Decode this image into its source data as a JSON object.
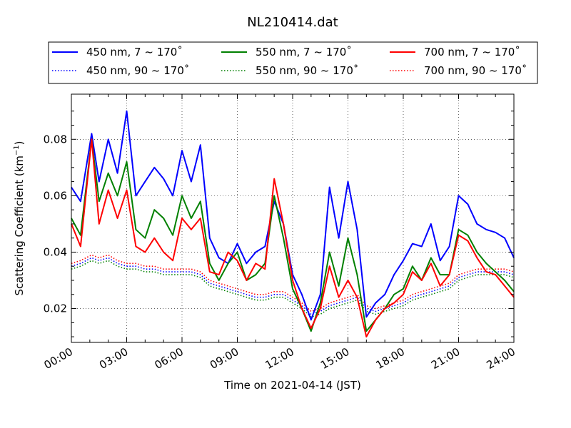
{
  "chart_data": {
    "type": "line",
    "title": "NL210414.dat",
    "xlabel": "Time on 2021-04-14 (JST)",
    "ylabel": "Scattering Coefficient (km",
    "ylabel_sup": "−1",
    "ylabel_close": ")",
    "x_unit": "hours",
    "xlim": [
      0,
      24
    ],
    "ylim": [
      0.008,
      0.096
    ],
    "xticks": [
      {
        "value": 0,
        "label": "00:00"
      },
      {
        "value": 3,
        "label": "03:00"
      },
      {
        "value": 6,
        "label": "06:00"
      },
      {
        "value": 9,
        "label": "09:00"
      },
      {
        "value": 12,
        "label": "12:00"
      },
      {
        "value": 15,
        "label": "15:00"
      },
      {
        "value": 18,
        "label": "18:00"
      },
      {
        "value": 21,
        "label": "21:00"
      },
      {
        "value": 24,
        "label": "24:00"
      }
    ],
    "yticks": [
      {
        "value": 0.02,
        "label": "0.02"
      },
      {
        "value": 0.04,
        "label": "0.04"
      },
      {
        "value": 0.06,
        "label": "0.06"
      },
      {
        "value": 0.08,
        "label": "0.08"
      }
    ],
    "grid": true,
    "legend_position": "top, above plot, 3 columns",
    "x": [
      0,
      0.5,
      1.1,
      1.5,
      2,
      2.5,
      3,
      3.5,
      4,
      4.5,
      5,
      5.5,
      6,
      6.5,
      7,
      7.5,
      8,
      8.5,
      9,
      9.5,
      10,
      10.5,
      11,
      11.5,
      12,
      12.5,
      13,
      13.5,
      14,
      14.5,
      15,
      15.5,
      16,
      16.5,
      17,
      17.5,
      18,
      18.5,
      19,
      19.5,
      20,
      20.5,
      21,
      21.5,
      22,
      22.5,
      23,
      23.5,
      24
    ],
    "series": [
      {
        "name": "450 nm, 7 ~ 170˚",
        "color": "#0000ff",
        "style": "solid",
        "values": [
          0.063,
          0.058,
          0.082,
          0.065,
          0.08,
          0.068,
          0.09,
          0.06,
          0.065,
          0.07,
          0.066,
          0.06,
          0.076,
          0.065,
          0.078,
          0.045,
          0.038,
          0.036,
          0.043,
          0.036,
          0.04,
          0.042,
          0.058,
          0.05,
          0.032,
          0.025,
          0.016,
          0.025,
          0.063,
          0.045,
          0.065,
          0.048,
          0.017,
          0.022,
          0.025,
          0.032,
          0.037,
          0.043,
          0.042,
          0.05,
          0.037,
          0.042,
          0.06,
          0.057,
          0.05,
          0.048,
          0.047,
          0.045,
          0.038
        ]
      },
      {
        "name": "550 nm, 7 ~ 170˚",
        "color": "#008000",
        "style": "solid",
        "values": [
          0.052,
          0.046,
          0.08,
          0.058,
          0.068,
          0.06,
          0.072,
          0.048,
          0.045,
          0.055,
          0.052,
          0.046,
          0.06,
          0.052,
          0.058,
          0.036,
          0.03,
          0.036,
          0.04,
          0.03,
          0.032,
          0.036,
          0.06,
          0.045,
          0.027,
          0.02,
          0.012,
          0.022,
          0.04,
          0.028,
          0.045,
          0.032,
          0.012,
          0.016,
          0.02,
          0.025,
          0.027,
          0.035,
          0.03,
          0.038,
          0.032,
          0.032,
          0.048,
          0.046,
          0.04,
          0.036,
          0.033,
          0.03,
          0.026
        ]
      },
      {
        "name": "700 nm, 7 ~ 170˚",
        "color": "#ff0000",
        "style": "solid",
        "values": [
          0.05,
          0.042,
          0.08,
          0.05,
          0.062,
          0.052,
          0.062,
          0.042,
          0.04,
          0.045,
          0.04,
          0.037,
          0.052,
          0.048,
          0.052,
          0.033,
          0.032,
          0.04,
          0.037,
          0.03,
          0.036,
          0.034,
          0.066,
          0.05,
          0.03,
          0.02,
          0.013,
          0.02,
          0.035,
          0.024,
          0.03,
          0.024,
          0.01,
          0.016,
          0.02,
          0.022,
          0.025,
          0.033,
          0.03,
          0.036,
          0.028,
          0.032,
          0.046,
          0.044,
          0.038,
          0.033,
          0.032,
          0.028,
          0.024
        ]
      },
      {
        "name": "450 nm, 90 ~ 170˚",
        "color": "#0000ff",
        "style": "dotted",
        "values": [
          0.035,
          0.036,
          0.038,
          0.037,
          0.038,
          0.036,
          0.035,
          0.035,
          0.034,
          0.034,
          0.033,
          0.033,
          0.033,
          0.033,
          0.032,
          0.029,
          0.028,
          0.027,
          0.026,
          0.025,
          0.024,
          0.024,
          0.025,
          0.025,
          0.023,
          0.021,
          0.018,
          0.019,
          0.021,
          0.022,
          0.023,
          0.024,
          0.02,
          0.019,
          0.02,
          0.021,
          0.022,
          0.024,
          0.025,
          0.026,
          0.027,
          0.028,
          0.031,
          0.032,
          0.033,
          0.033,
          0.033,
          0.033,
          0.032
        ]
      },
      {
        "name": "550 nm, 90 ~ 170˚",
        "color": "#008000",
        "style": "dotted",
        "values": [
          0.034,
          0.035,
          0.037,
          0.036,
          0.037,
          0.035,
          0.034,
          0.034,
          0.033,
          0.033,
          0.032,
          0.032,
          0.032,
          0.032,
          0.031,
          0.028,
          0.027,
          0.026,
          0.025,
          0.024,
          0.023,
          0.023,
          0.024,
          0.024,
          0.022,
          0.02,
          0.017,
          0.018,
          0.02,
          0.021,
          0.022,
          0.023,
          0.019,
          0.018,
          0.019,
          0.02,
          0.021,
          0.023,
          0.024,
          0.025,
          0.026,
          0.027,
          0.03,
          0.031,
          0.032,
          0.032,
          0.032,
          0.032,
          0.031
        ]
      },
      {
        "name": "700 nm, 90 ~ 170˚",
        "color": "#ff0000",
        "style": "dotted",
        "values": [
          0.036,
          0.037,
          0.039,
          0.038,
          0.039,
          0.037,
          0.036,
          0.036,
          0.035,
          0.035,
          0.034,
          0.034,
          0.034,
          0.034,
          0.033,
          0.03,
          0.029,
          0.028,
          0.027,
          0.026,
          0.025,
          0.025,
          0.026,
          0.026,
          0.024,
          0.022,
          0.019,
          0.02,
          0.022,
          0.023,
          0.024,
          0.025,
          0.021,
          0.02,
          0.021,
          0.022,
          0.023,
          0.025,
          0.026,
          0.027,
          0.028,
          0.029,
          0.032,
          0.033,
          0.034,
          0.034,
          0.034,
          0.034,
          0.033
        ]
      }
    ],
    "legend_order": [
      0,
      1,
      2,
      3,
      4,
      5
    ]
  }
}
